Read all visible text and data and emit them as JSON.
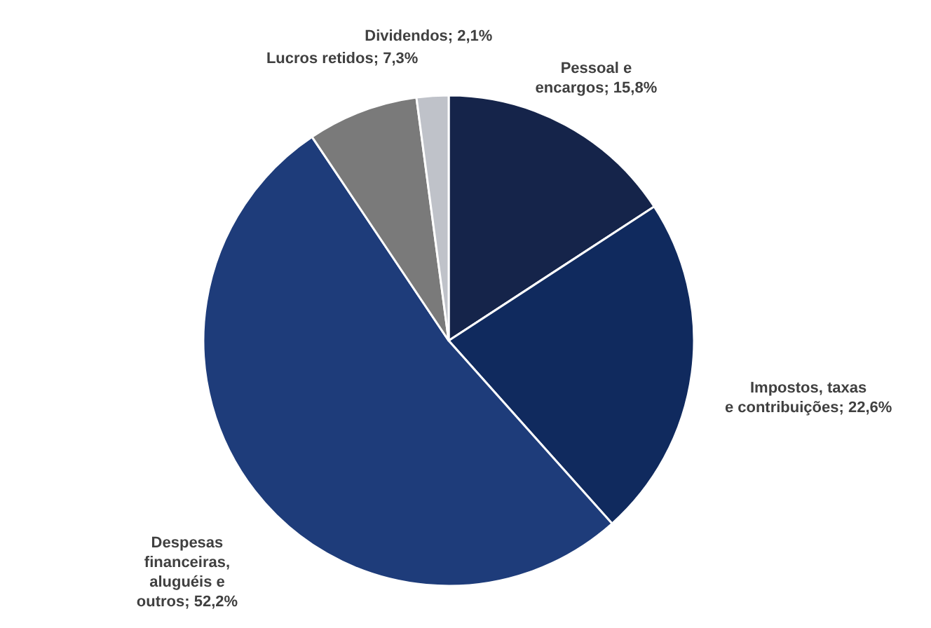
{
  "chart_data": {
    "type": "pie",
    "categories": [
      "Pessoal e encargos",
      "Impostos, taxas e contribuições",
      "Despesas financeiras, aluguéis e outros",
      "Lucros retidos",
      "Dividendos"
    ],
    "values": [
      15.8,
      22.6,
      52.2,
      7.3,
      2.1
    ],
    "value_labels": [
      "15,8%",
      "22,6%",
      "52,2%",
      "7,3%",
      "2,1%"
    ],
    "colors": [
      "#15244a",
      "#102a5e",
      "#1e3c7a",
      "#7a7a7a",
      "#bfc2c9"
    ]
  }
}
